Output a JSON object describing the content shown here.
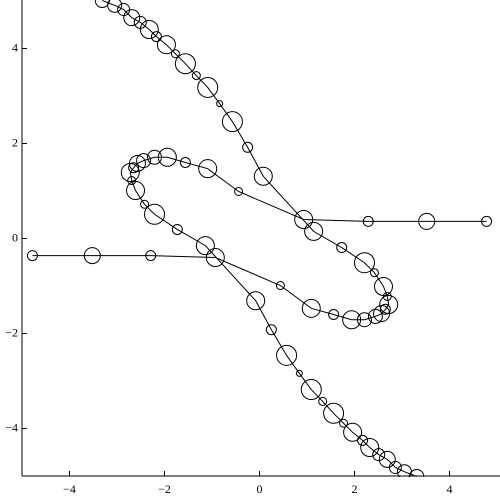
{
  "chart_data": {
    "type": "bubble-line",
    "xlim": [
      -5,
      5
    ],
    "ylim": [
      -5,
      5
    ],
    "xticks": [
      {
        "value": -4,
        "label": "−4"
      },
      {
        "value": -2,
        "label": "−2"
      },
      0,
      2,
      4
    ],
    "yticks": [
      {
        "value": -4,
        "label": "−4"
      },
      {
        "value": -2,
        "label": "−2"
      },
      0,
      2,
      4
    ],
    "series": [
      {
        "color": "#000000",
        "x": [
          -3.31,
          -3.05,
          -2.86,
          -2.69,
          -2.51,
          -2.32,
          -2.17,
          -1.96,
          -1.77,
          -1.56,
          -1.33,
          -1.09,
          -0.84,
          -0.57,
          -0.25,
          0.08,
          1.14,
          1.73,
          2.21,
          2.42,
          2.61,
          2.69,
          2.72,
          2.65,
          2.57,
          2.44,
          2.21,
          1.94,
          1.56,
          1.09,
          0.44,
          -0.93,
          -2.29,
          -3.52,
          -4.78
        ],
        "values": [
          5.01,
          4.91,
          4.82,
          4.65,
          4.55,
          4.4,
          4.25,
          4.08,
          3.89,
          3.68,
          3.43,
          3.18,
          2.84,
          2.46,
          1.92,
          1.31,
          0.15,
          -0.19,
          -0.51,
          -0.72,
          -1.01,
          -1.22,
          -1.39,
          -1.49,
          -1.58,
          -1.64,
          -1.71,
          -1.71,
          -1.6,
          -1.47,
          -0.99,
          -0.4,
          -0.36,
          -0.36,
          -0.36
        ],
        "sizes": [
          7,
          7,
          6,
          8,
          6,
          9,
          5,
          9,
          4,
          10,
          4,
          10,
          3,
          10,
          5,
          9,
          9,
          5,
          10,
          4,
          9,
          4,
          9,
          5,
          8,
          7,
          7,
          9,
          5,
          9,
          4,
          9,
          5,
          8,
          5
        ]
      },
      {
        "color": "#000000",
        "x": [
          3.31,
          3.05,
          2.86,
          2.69,
          2.51,
          2.32,
          2.17,
          1.96,
          1.77,
          1.56,
          1.33,
          1.09,
          0.84,
          0.57,
          0.25,
          -0.08,
          -1.14,
          -1.73,
          -2.21,
          -2.42,
          -2.61,
          -2.69,
          -2.72,
          -2.65,
          -2.57,
          -2.44,
          -2.21,
          -1.94,
          -1.56,
          -1.09,
          -0.44,
          0.93,
          2.29,
          3.52,
          4.78
        ],
        "values": [
          -5.01,
          -4.91,
          -4.82,
          -4.65,
          -4.55,
          -4.4,
          -4.25,
          -4.08,
          -3.89,
          -3.68,
          -3.43,
          -3.18,
          -2.84,
          -2.46,
          -1.92,
          -1.31,
          -0.15,
          0.19,
          0.51,
          0.72,
          1.01,
          1.22,
          1.39,
          1.49,
          1.58,
          1.64,
          1.71,
          1.71,
          1.6,
          1.47,
          0.99,
          0.4,
          0.36,
          0.36,
          0.36
        ],
        "sizes": [
          7,
          7,
          6,
          8,
          6,
          9,
          5,
          9,
          4,
          10,
          4,
          10,
          3,
          10,
          5,
          9,
          9,
          5,
          10,
          4,
          9,
          4,
          9,
          5,
          8,
          7,
          7,
          9,
          5,
          9,
          4,
          9,
          5,
          8,
          5
        ]
      }
    ]
  }
}
